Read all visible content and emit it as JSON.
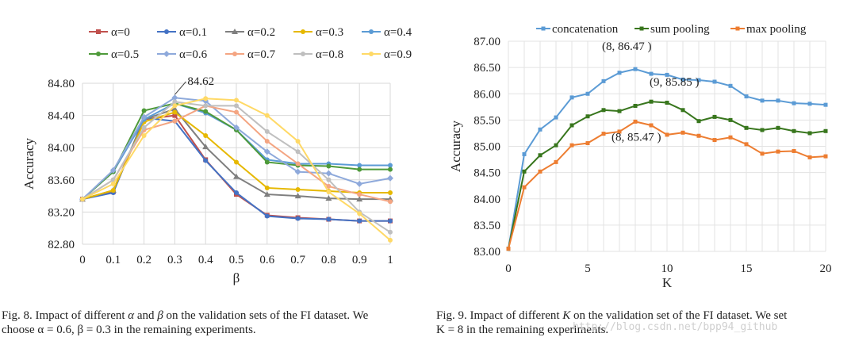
{
  "chart_data": [
    {
      "type": "line",
      "xlabel": "β",
      "ylabel": "Accuracy",
      "x": [
        0,
        0.1,
        0.2,
        0.3,
        0.4,
        0.5,
        0.6,
        0.7,
        0.8,
        0.9,
        1
      ],
      "x_tick_labels": [
        "0",
        "0.1",
        "0.2",
        "0.3",
        "0.4",
        "0.5",
        "0.6",
        "0.7",
        "0.8",
        "0.9",
        "1"
      ],
      "ylim": [
        82.8,
        84.8
      ],
      "y_ticks": [
        82.8,
        83.2,
        83.6,
        84.0,
        84.4,
        84.8
      ],
      "y_tick_labels": [
        "82.80",
        "83.20",
        "83.60",
        "84.00",
        "84.40",
        "84.80"
      ],
      "grid": "both",
      "legend": "top",
      "annotations": [
        {
          "text": "84.62",
          "x": 0.3,
          "y": 84.62
        }
      ],
      "series": [
        {
          "name": "α=0",
          "color": "#c0504d",
          "marker": "square",
          "values": [
            83.36,
            83.45,
            84.35,
            84.4,
            83.85,
            83.42,
            83.16,
            83.13,
            83.11,
            83.09,
            83.09
          ]
        },
        {
          "name": "α=0.1",
          "color": "#4472c4",
          "marker": "circle",
          "values": [
            83.36,
            83.44,
            84.37,
            84.33,
            83.84,
            83.44,
            83.15,
            83.12,
            83.11,
            83.09,
            83.09
          ]
        },
        {
          "name": "α=0.2",
          "color": "#7f7f7f",
          "marker": "triangle",
          "values": [
            83.36,
            83.47,
            84.35,
            84.48,
            84.01,
            83.64,
            83.42,
            83.4,
            83.37,
            83.36,
            83.36
          ]
        },
        {
          "name": "α=0.3",
          "color": "#e6b800",
          "marker": "circle",
          "values": [
            83.36,
            83.47,
            84.32,
            84.44,
            84.15,
            83.82,
            83.5,
            83.48,
            83.46,
            83.44,
            83.44
          ]
        },
        {
          "name": "α=0.4",
          "color": "#5b9bd5",
          "marker": "circle",
          "values": [
            83.36,
            83.7,
            84.35,
            84.55,
            84.43,
            84.22,
            83.85,
            83.8,
            83.8,
            83.78,
            83.78
          ]
        },
        {
          "name": "α=0.5",
          "color": "#4e9a3a",
          "marker": "circle",
          "values": [
            83.36,
            83.7,
            84.46,
            84.55,
            84.45,
            84.22,
            83.82,
            83.78,
            83.77,
            83.73,
            83.73
          ]
        },
        {
          "name": "α=0.6",
          "color": "#8ea9db",
          "marker": "diamond",
          "values": [
            83.36,
            83.72,
            84.38,
            84.62,
            84.58,
            84.25,
            83.95,
            83.7,
            83.68,
            83.55,
            83.62
          ]
        },
        {
          "name": "α=0.7",
          "color": "#f4a582",
          "marker": "circle",
          "values": [
            83.36,
            83.6,
            84.22,
            84.33,
            84.52,
            84.44,
            84.08,
            83.8,
            83.52,
            83.42,
            83.33
          ]
        },
        {
          "name": "α=0.8",
          "color": "#bfbfbf",
          "marker": "circle",
          "values": [
            83.36,
            83.6,
            84.25,
            84.57,
            84.52,
            84.52,
            84.2,
            83.95,
            83.6,
            83.2,
            82.95
          ]
        },
        {
          "name": "α=0.9",
          "color": "#ffd966",
          "marker": "circle",
          "values": [
            83.36,
            83.55,
            84.15,
            84.52,
            84.61,
            84.59,
            84.4,
            84.08,
            83.45,
            83.18,
            82.85
          ]
        }
      ]
    },
    {
      "type": "line",
      "xlabel": "K",
      "ylabel": "Accuracy",
      "x": [
        0,
        1,
        2,
        3,
        4,
        5,
        6,
        7,
        8,
        9,
        10,
        11,
        12,
        13,
        14,
        15,
        16,
        17,
        18,
        19,
        20
      ],
      "x_ticks": [
        0,
        5,
        10,
        15,
        20
      ],
      "x_tick_labels": [
        "0",
        "5",
        "10",
        "15",
        "20"
      ],
      "ylim": [
        83.0,
        87.0
      ],
      "y_ticks": [
        83.0,
        83.5,
        84.0,
        84.5,
        85.0,
        85.5,
        86.0,
        86.5,
        87.0
      ],
      "y_tick_labels": [
        "83.00",
        "83.50",
        "84.00",
        "84.50",
        "85.00",
        "85.50",
        "86.00",
        "86.50",
        "87.00"
      ],
      "grid": "both",
      "legend": "top",
      "annotations": [
        {
          "text": "(8, 86.47 )",
          "x": 8,
          "y": 86.47
        },
        {
          "text": "(9, 85.85 )",
          "x": 9,
          "y": 85.85
        },
        {
          "text": "(8, 85.47 )",
          "x": 8,
          "y": 85.47
        }
      ],
      "series": [
        {
          "name": "concatenation",
          "color": "#5b9bd5",
          "values": [
            83.05,
            84.85,
            85.32,
            85.55,
            85.93,
            86.0,
            86.24,
            86.4,
            86.47,
            86.38,
            86.36,
            86.27,
            86.26,
            86.23,
            86.15,
            85.95,
            85.87,
            85.87,
            85.82,
            85.81,
            85.79
          ]
        },
        {
          "name": "sum pooling",
          "color": "#38761d",
          "values": [
            83.05,
            84.52,
            84.83,
            85.02,
            85.4,
            85.57,
            85.69,
            85.67,
            85.77,
            85.85,
            85.83,
            85.69,
            85.48,
            85.56,
            85.5,
            85.35,
            85.31,
            85.35,
            85.29,
            85.25,
            85.29
          ]
        },
        {
          "name": "max pooling",
          "color": "#ed7d31",
          "values": [
            83.05,
            84.22,
            84.52,
            84.7,
            85.02,
            85.06,
            85.24,
            85.28,
            85.47,
            85.4,
            85.22,
            85.26,
            85.2,
            85.12,
            85.17,
            85.04,
            84.86,
            84.9,
            84.91,
            84.79,
            84.81
          ]
        }
      ]
    }
  ],
  "captions": {
    "left_line1_pre": "Fig. 8.    Impact of different ",
    "left_line1_alpha": "α",
    "left_line1_and": " and ",
    "left_line1_beta": "β",
    "left_line1_post": " on the validation sets of the FI dataset. We",
    "left_line2": "choose α = 0.6, β = 0.3 in the remaining experiments.",
    "right_line1_pre": "Fig. 9.    Impact of different ",
    "right_line1_k": "K",
    "right_line1_post": " on the validation set of the FI dataset. We set",
    "right_line2": "K = 8 in the remaining experiments."
  },
  "watermark": "http://blog.csdn.net/bpp94_github"
}
